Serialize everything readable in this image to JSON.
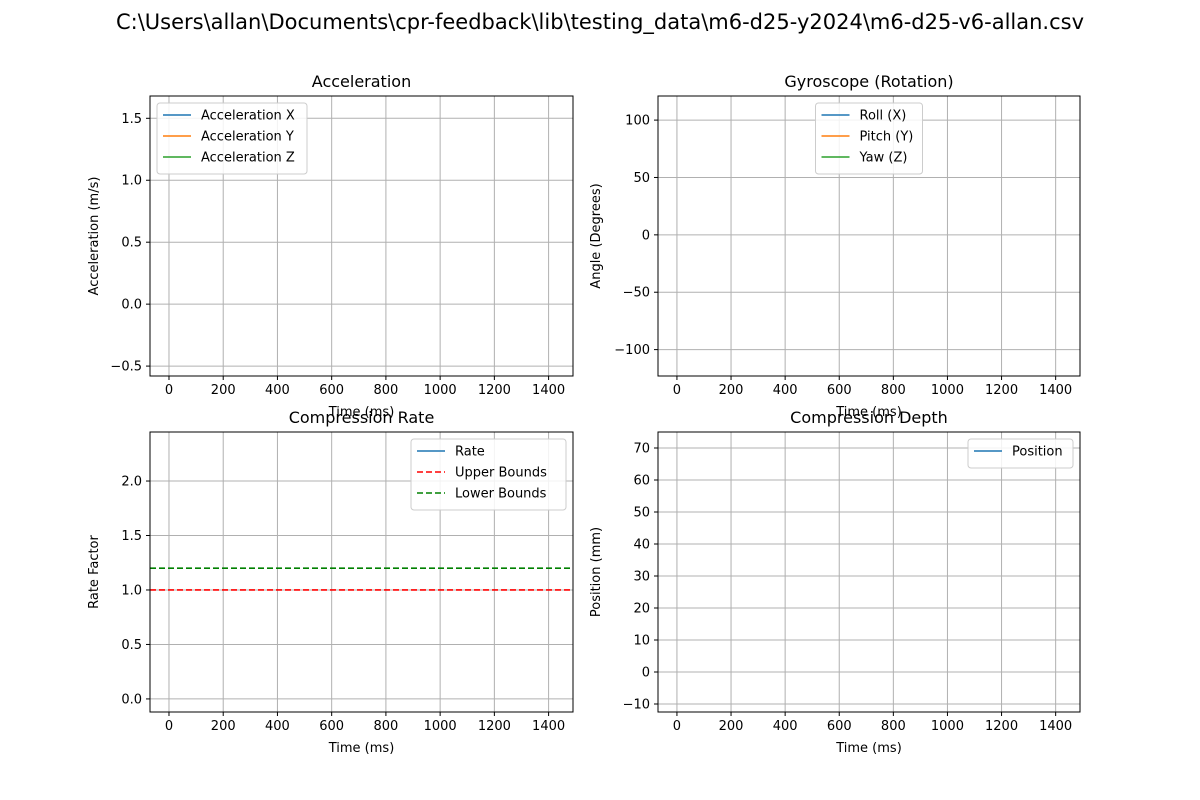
{
  "figure": {
    "title": "C:\\Users\\allan\\Documents\\cpr-feedback\\lib\\testing_data\\m6-d25-y2024\\m6-d25-v6-allan.csv"
  },
  "chart_data": [
    {
      "type": "line",
      "title": "Acceleration",
      "xlabel": "Time (ms)",
      "ylabel": "Acceleration (m/s)",
      "xlim": [
        -70,
        1490
      ],
      "ylim": [
        -0.58,
        1.68
      ],
      "xticks": [
        "0",
        "200",
        "400",
        "600",
        "800",
        "1000",
        "1200",
        "1400"
      ],
      "xtick_values": [
        0,
        200,
        400,
        600,
        800,
        1000,
        1200,
        1400
      ],
      "yticks": [
        "−0.5",
        "0.0",
        "0.5",
        "1.0",
        "1.5"
      ],
      "ytick_values": [
        -0.5,
        0.0,
        0.5,
        1.0,
        1.5
      ],
      "grid": true,
      "legend": "upper left",
      "series": [
        {
          "name": "Acceleration X",
          "color": "#1f77b4",
          "style": "solid",
          "x": [],
          "y": []
        },
        {
          "name": "Acceleration Y",
          "color": "#ff7f0e",
          "style": "solid",
          "x": [],
          "y": []
        },
        {
          "name": "Acceleration Z",
          "color": "#2ca02c",
          "style": "solid",
          "x": [],
          "y": []
        }
      ]
    },
    {
      "type": "line",
      "title": "Gyroscope (Rotation)",
      "xlabel": "Time (ms)",
      "ylabel": "Angle (Degrees)",
      "xlim": [
        -70,
        1490
      ],
      "ylim": [
        -123,
        121
      ],
      "xticks": [
        "0",
        "200",
        "400",
        "600",
        "800",
        "1000",
        "1200",
        "1400"
      ],
      "xtick_values": [
        0,
        200,
        400,
        600,
        800,
        1000,
        1200,
        1400
      ],
      "yticks": [
        "−100",
        "−50",
        "0",
        "50",
        "100"
      ],
      "ytick_values": [
        -100,
        -50,
        0,
        50,
        100
      ],
      "grid": true,
      "legend": "upper center",
      "series": [
        {
          "name": "Roll (X)",
          "color": "#1f77b4",
          "style": "solid",
          "x": [],
          "y": []
        },
        {
          "name": "Pitch (Y)",
          "color": "#ff7f0e",
          "style": "solid",
          "x": [],
          "y": []
        },
        {
          "name": "Yaw (Z)",
          "color": "#2ca02c",
          "style": "solid",
          "x": [],
          "y": []
        }
      ]
    },
    {
      "type": "line",
      "title": "Compression Rate",
      "xlabel": "Time (ms)",
      "ylabel": "Rate Factor",
      "xlim": [
        -70,
        1490
      ],
      "ylim": [
        -0.12,
        2.45
      ],
      "xticks": [
        "0",
        "200",
        "400",
        "600",
        "800",
        "1000",
        "1200",
        "1400"
      ],
      "xtick_values": [
        0,
        200,
        400,
        600,
        800,
        1000,
        1200,
        1400
      ],
      "yticks": [
        "0.0",
        "0.5",
        "1.0",
        "1.5",
        "2.0"
      ],
      "ytick_values": [
        0.0,
        0.5,
        1.0,
        1.5,
        2.0
      ],
      "grid": true,
      "legend": "upper right",
      "series": [
        {
          "name": "Rate",
          "color": "#1f77b4",
          "style": "solid",
          "x": [],
          "y": []
        },
        {
          "name": "Upper Bounds",
          "color": "#ff0000",
          "style": "dashed",
          "hline": 1.0
        },
        {
          "name": "Lower Bounds",
          "color": "#008000",
          "style": "dashed",
          "hline": 1.2
        }
      ]
    },
    {
      "type": "line",
      "title": "Compression Depth",
      "xlabel": "Time (ms)",
      "ylabel": "Position (mm)",
      "xlim": [
        -70,
        1490
      ],
      "ylim": [
        -12.5,
        75
      ],
      "xticks": [
        "0",
        "200",
        "400",
        "600",
        "800",
        "1000",
        "1200",
        "1400"
      ],
      "xtick_values": [
        0,
        200,
        400,
        600,
        800,
        1000,
        1200,
        1400
      ],
      "yticks": [
        "−10",
        "0",
        "10",
        "20",
        "30",
        "40",
        "50",
        "60",
        "70"
      ],
      "ytick_values": [
        -10,
        0,
        10,
        20,
        30,
        40,
        50,
        60,
        70
      ],
      "grid": true,
      "legend": "upper right",
      "series": [
        {
          "name": "Position",
          "color": "#1f77b4",
          "style": "solid",
          "x": [],
          "y": []
        }
      ]
    }
  ]
}
